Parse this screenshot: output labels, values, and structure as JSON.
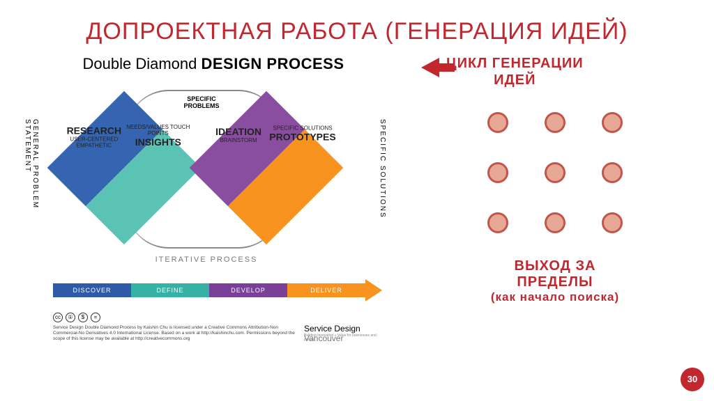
{
  "title": "ДОПРОЕКТНАЯ РАБОТА (ГЕНЕРАЦИЯ ИДЕЙ)",
  "page_number": "30",
  "double_diamond": {
    "title_light": "Double Diamond ",
    "title_bold": "DESIGN PROCESS",
    "left_vertical": "GENERAL PROBLEM STATEMENT",
    "right_vertical": "SPECIFIC SOLUTIONS",
    "center_label": "SPECIFIC PROBLEMS",
    "iterative_label": "ITERATIVE PROCESS",
    "phases": [
      {
        "name": "RESEARCH",
        "sub": "USER-CENTERED EMPATHETIC",
        "color": "#3564b0"
      },
      {
        "name": "INSIGHTS",
        "sub": "NEEDS/VALUES TOUCH POINTS",
        "color": "#5bc3b4"
      },
      {
        "name": "IDEATION",
        "sub": "BRAINSTORM",
        "color": "#8a4ea0"
      },
      {
        "name": "PROTOTYPES",
        "sub": "SPECIFIC SOLUTIONS",
        "color": "#f7931e"
      }
    ],
    "stages": [
      {
        "label": "DISCOVER",
        "color": "#2e5aa8"
      },
      {
        "label": "DEFINE",
        "color": "#35b2a3"
      },
      {
        "label": "DEVELOP",
        "color": "#7a3f98"
      },
      {
        "label": "DELIVER",
        "color": "#f7931e"
      }
    ],
    "cc_icons": [
      "cc",
      "①",
      "$",
      "="
    ],
    "cc_text": "Service Design Double Diamond Process by Kaishin Chu is licensed under a Creative Commons Attribution-Non Commercial-No Derivatives 4.0 International License. Based on a work at http://kaishinchu.com. Permissions beyond the scope of this license may be available at http://creativecommons.org",
    "brand_thin": "Service Design ",
    "brand_city": "Vancouver",
    "brand_sub": "Building Innovation + Value for businesses and people"
  },
  "right_panel": {
    "cycle_line1": "ЦИКЛ ГЕНЕРАЦИИ",
    "cycle_line2": "ИДЕЙ",
    "dot_count": 9,
    "dot_fill": "#e8a896",
    "dot_border": "#c1554a",
    "exit_line1": "ВЫХОД ЗА",
    "exit_line2": "ПРЕДЕЛЫ",
    "exit_sub": "(как начало поиска)"
  },
  "colors": {
    "accent": "#c1272d",
    "bg": "#ffffff"
  }
}
